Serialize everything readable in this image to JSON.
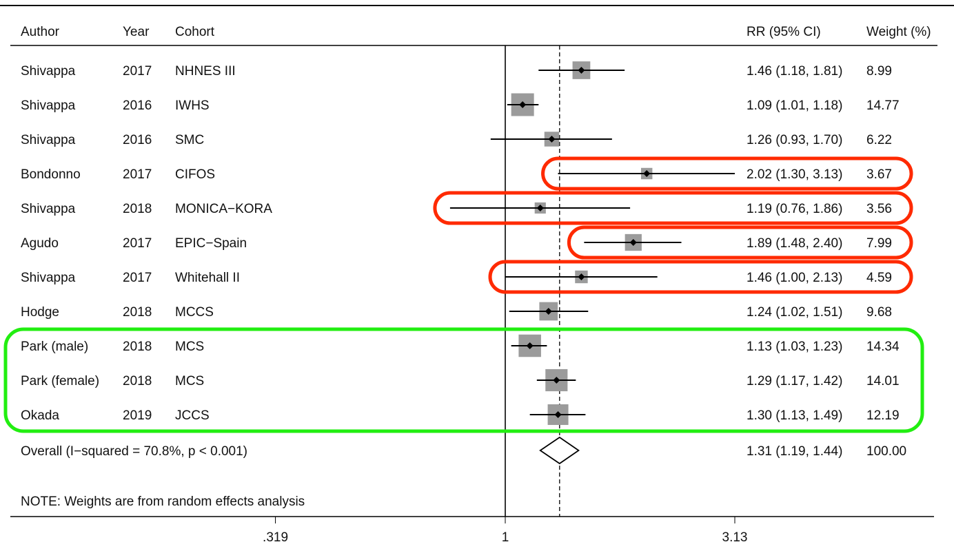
{
  "headers": {
    "author": "Author",
    "year": "Year",
    "cohort": "Cohort",
    "rr": "RR (95% CI)",
    "weight": "Weight (%)"
  },
  "chart_data": {
    "type": "forest",
    "scale": "log",
    "xticks": [
      {
        "value": 0.319,
        "label": ".319"
      },
      {
        "value": 1,
        "label": "1"
      },
      {
        "value": 3.13,
        "label": "3.13"
      }
    ],
    "xlim": [
      0.319,
      3.13
    ],
    "reference_line": 1,
    "pooled_line": 1.31,
    "studies": [
      {
        "author": "Shivappa",
        "year": "2017",
        "cohort": "NHNES III",
        "rr": 1.46,
        "lo": 1.18,
        "hi": 1.81,
        "weight": 8.99,
        "rr_text": "1.46 (1.18, 1.81)",
        "weight_text": "8.99"
      },
      {
        "author": "Shivappa",
        "year": "2016",
        "cohort": "IWHS",
        "rr": 1.09,
        "lo": 1.01,
        "hi": 1.18,
        "weight": 14.77,
        "rr_text": "1.09 (1.01, 1.18)",
        "weight_text": "14.77"
      },
      {
        "author": "Shivappa",
        "year": "2016",
        "cohort": "SMC",
        "rr": 1.26,
        "lo": 0.93,
        "hi": 1.7,
        "weight": 6.22,
        "rr_text": "1.26 (0.93, 1.70)",
        "weight_text": "6.22"
      },
      {
        "author": "Bondonno",
        "year": "2017",
        "cohort": "CIFOS",
        "rr": 2.02,
        "lo": 1.3,
        "hi": 3.13,
        "weight": 3.67,
        "rr_text": "2.02 (1.30, 3.13)",
        "weight_text": "3.67"
      },
      {
        "author": "Shivappa",
        "year": "2018",
        "cohort": "MONICA−KORA",
        "rr": 1.19,
        "lo": 0.76,
        "hi": 1.86,
        "weight": 3.56,
        "rr_text": "1.19 (0.76, 1.86)",
        "weight_text": "3.56"
      },
      {
        "author": "Agudo",
        "year": "2017",
        "cohort": "EPIC−Spain",
        "rr": 1.89,
        "lo": 1.48,
        "hi": 2.4,
        "weight": 7.99,
        "rr_text": "1.89 (1.48, 2.40)",
        "weight_text": "7.99"
      },
      {
        "author": "Shivappa",
        "year": "2017",
        "cohort": "Whitehall II",
        "rr": 1.46,
        "lo": 1.0,
        "hi": 2.13,
        "weight": 4.59,
        "rr_text": "1.46 (1.00, 2.13)",
        "weight_text": "4.59"
      },
      {
        "author": "Hodge",
        "year": "2018",
        "cohort": "MCCS",
        "rr": 1.24,
        "lo": 1.02,
        "hi": 1.51,
        "weight": 9.68,
        "rr_text": "1.24 (1.02, 1.51)",
        "weight_text": "9.68"
      },
      {
        "author": "Park (male)",
        "year": "2018",
        "cohort": "MCS",
        "rr": 1.13,
        "lo": 1.03,
        "hi": 1.23,
        "weight": 14.34,
        "rr_text": "1.13 (1.03, 1.23)",
        "weight_text": "14.34"
      },
      {
        "author": "Park (female)",
        "year": "2018",
        "cohort": "MCS",
        "rr": 1.29,
        "lo": 1.17,
        "hi": 1.42,
        "weight": 14.01,
        "rr_text": "1.29 (1.17, 1.42)",
        "weight_text": "14.01"
      },
      {
        "author": "Okada",
        "year": "2019",
        "cohort": "JCCS",
        "rr": 1.3,
        "lo": 1.13,
        "hi": 1.49,
        "weight": 12.19,
        "rr_text": "1.30 (1.13, 1.49)",
        "weight_text": "12.19"
      }
    ],
    "overall": {
      "label": "Overall  (I−squared = 70.8%, p < 0.001)",
      "rr": 1.31,
      "lo": 1.19,
      "hi": 1.44,
      "rr_text": "1.31 (1.19, 1.44)",
      "weight_text": "100.00"
    },
    "note": "NOTE: Weights are from random effects analysis",
    "highlights": {
      "red_rows": [
        3,
        4,
        5,
        6
      ],
      "green_rows": [
        8,
        9,
        10
      ],
      "red_color": "#ff2a00",
      "green_color": "#22ee11"
    },
    "colors": {
      "box": "#9b9b9b",
      "line": "#000000",
      "text": "#111111"
    }
  }
}
